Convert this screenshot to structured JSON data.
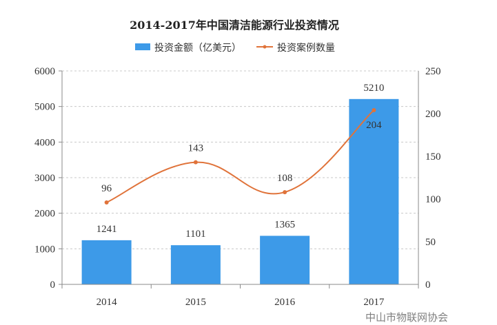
{
  "chart_data": {
    "type": "bar+line",
    "title": "2014-2017年中国清洁能源行业投资情况",
    "categories": [
      "2014",
      "2015",
      "2016",
      "2017"
    ],
    "series": [
      {
        "name": "投资金额（亿美元）",
        "type": "bar",
        "axis": "left",
        "values": [
          1241,
          1101,
          1365,
          5210
        ],
        "color": "#3d9ae8"
      },
      {
        "name": "投资案例数量",
        "type": "line",
        "axis": "right",
        "smooth": true,
        "values": [
          96,
          143,
          108,
          204
        ],
        "color": "#e0733a"
      }
    ],
    "y_left": {
      "ylim": [
        0,
        6000
      ],
      "ticks": [
        "0",
        "1000",
        "2000",
        "3000",
        "4000",
        "5000",
        "6000"
      ]
    },
    "y_right": {
      "ylim": [
        0,
        250
      ],
      "ticks": [
        "0",
        "50",
        "100",
        "150",
        "200",
        "250"
      ]
    },
    "grid": "horizontal dashed",
    "legend": "top-center"
  },
  "watermark": "中山市物联网协会"
}
